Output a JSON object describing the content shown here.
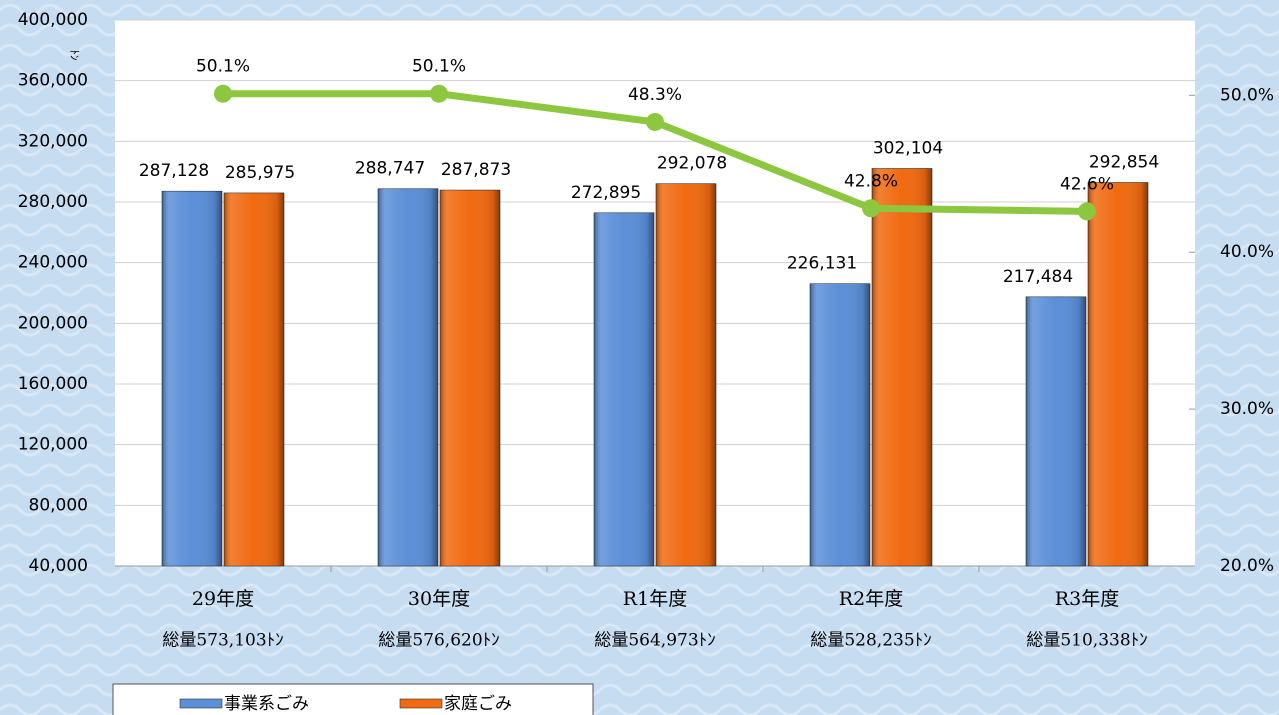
{
  "chart_data": {
    "type": "bar",
    "categories": [
      "29年度",
      "30年度",
      "R1年度",
      "R2年度",
      "R3年度"
    ],
    "totals": [
      "総量573,103ﾄﾝ",
      "総量576,620ﾄﾝ",
      "総量564,973ﾄﾝ",
      "総量528,235ﾄﾝ",
      "総量510,338ﾄﾝ"
    ],
    "y_unit": "ﾄﾝ",
    "series": [
      {
        "name": "事業系ごみ",
        "color": "#5b8fd8",
        "values": [
          287128,
          288747,
          272895,
          226131,
          217484
        ],
        "value_labels": [
          "287,128",
          "288,747",
          "272,895",
          "226,131",
          "217,484"
        ]
      },
      {
        "name": "家庭ごみ",
        "color": "#f06a10",
        "values": [
          285975,
          287873,
          292078,
          302104,
          292854
        ],
        "value_labels": [
          "285,975",
          "287,873",
          "292,078",
          "302,104",
          "292,854"
        ]
      }
    ],
    "line_series": {
      "type": "line",
      "axis": "y2",
      "color": "#8dc63f",
      "values": [
        50.1,
        50.1,
        48.3,
        42.8,
        42.6
      ],
      "value_labels": [
        "50.1%",
        "50.1%",
        "48.3%",
        "42.8%",
        "42.6%"
      ]
    },
    "ylim": [
      40000,
      400000
    ],
    "yticks": [
      {
        "value": 40000,
        "label": "40,000"
      },
      {
        "value": 80000,
        "label": "80,000"
      },
      {
        "value": 120000,
        "label": "120,000"
      },
      {
        "value": 160000,
        "label": "160,000"
      },
      {
        "value": 200000,
        "label": "200,000"
      },
      {
        "value": 240000,
        "label": "240,000"
      },
      {
        "value": 280000,
        "label": "280,000"
      },
      {
        "value": 320000,
        "label": "320,000"
      },
      {
        "value": 360000,
        "label": "360,000"
      },
      {
        "value": 400000,
        "label": "400,000"
      }
    ],
    "y2lim": [
      20,
      54.8
    ],
    "y2ticks": [
      {
        "value": 20,
        "label": "20.0%"
      },
      {
        "value": 30,
        "label": "30.0%"
      },
      {
        "value": 40,
        "label": "40.0%"
      },
      {
        "value": 50,
        "label": "50.0%"
      }
    ],
    "grid": true
  }
}
